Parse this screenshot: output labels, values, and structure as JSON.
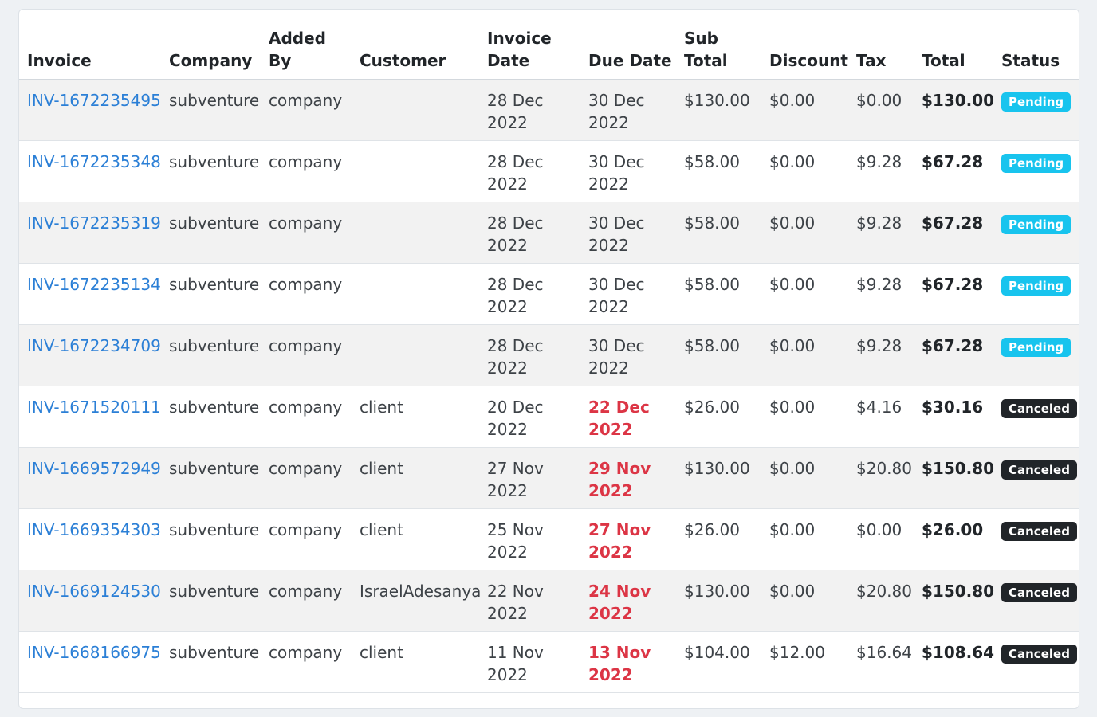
{
  "colors": {
    "link": "#2b7fd6",
    "overdue": "#dc3545",
    "pending_badge": "#18c4ee",
    "canceled_badge": "#212529"
  },
  "table": {
    "headers": {
      "invoice": "Invoice",
      "company": "Company",
      "added_by": "Added By",
      "customer": "Customer",
      "invoice_date": "Invoice Date",
      "due_date": "Due Date",
      "sub_total": "Sub Total",
      "discount": "Discount",
      "tax": "Tax",
      "total": "Total",
      "status": "Status"
    },
    "rows": [
      {
        "invoice": "INV-1672235495",
        "company": "subventure",
        "added_by": "company",
        "customer": "",
        "invoice_date": "28 Dec 2022",
        "due_date": "30 Dec 2022",
        "overdue": false,
        "sub_total": "$130.00",
        "discount": "$0.00",
        "tax": "$0.00",
        "total": "$130.00",
        "status": "Pending"
      },
      {
        "invoice": "INV-1672235348",
        "company": "subventure",
        "added_by": "company",
        "customer": "",
        "invoice_date": "28 Dec 2022",
        "due_date": "30 Dec 2022",
        "overdue": false,
        "sub_total": "$58.00",
        "discount": "$0.00",
        "tax": "$9.28",
        "total": "$67.28",
        "status": "Pending"
      },
      {
        "invoice": "INV-1672235319",
        "company": "subventure",
        "added_by": "company",
        "customer": "",
        "invoice_date": "28 Dec 2022",
        "due_date": "30 Dec 2022",
        "overdue": false,
        "sub_total": "$58.00",
        "discount": "$0.00",
        "tax": "$9.28",
        "total": "$67.28",
        "status": "Pending"
      },
      {
        "invoice": "INV-1672235134",
        "company": "subventure",
        "added_by": "company",
        "customer": "",
        "invoice_date": "28 Dec 2022",
        "due_date": "30 Dec 2022",
        "overdue": false,
        "sub_total": "$58.00",
        "discount": "$0.00",
        "tax": "$9.28",
        "total": "$67.28",
        "status": "Pending"
      },
      {
        "invoice": "INV-1672234709",
        "company": "subventure",
        "added_by": "company",
        "customer": "",
        "invoice_date": "28 Dec 2022",
        "due_date": "30 Dec 2022",
        "overdue": false,
        "sub_total": "$58.00",
        "discount": "$0.00",
        "tax": "$9.28",
        "total": "$67.28",
        "status": "Pending"
      },
      {
        "invoice": "INV-1671520111",
        "company": "subventure",
        "added_by": "company",
        "customer": "client",
        "invoice_date": "20 Dec 2022",
        "due_date": "22 Dec 2022",
        "overdue": true,
        "sub_total": "$26.00",
        "discount": "$0.00",
        "tax": "$4.16",
        "total": "$30.16",
        "status": "Canceled"
      },
      {
        "invoice": "INV-1669572949",
        "company": "subventure",
        "added_by": "company",
        "customer": "client",
        "invoice_date": "27 Nov 2022",
        "due_date": "29 Nov 2022",
        "overdue": true,
        "sub_total": "$130.00",
        "discount": "$0.00",
        "tax": "$20.80",
        "total": "$150.80",
        "status": "Canceled"
      },
      {
        "invoice": "INV-1669354303",
        "company": "subventure",
        "added_by": "company",
        "customer": "client",
        "invoice_date": "25 Nov 2022",
        "due_date": "27 Nov 2022",
        "overdue": true,
        "sub_total": "$26.00",
        "discount": "$0.00",
        "tax": "$0.00",
        "total": "$26.00",
        "status": "Canceled"
      },
      {
        "invoice": "INV-1669124530",
        "company": "subventure",
        "added_by": "company",
        "customer": "IsraelAdesanya",
        "invoice_date": "22 Nov 2022",
        "due_date": "24 Nov 2022",
        "overdue": true,
        "sub_total": "$130.00",
        "discount": "$0.00",
        "tax": "$20.80",
        "total": "$150.80",
        "status": "Canceled"
      },
      {
        "invoice": "INV-1668166975",
        "company": "subventure",
        "added_by": "company",
        "customer": "client",
        "invoice_date": "11 Nov 2022",
        "due_date": "13 Nov 2022",
        "overdue": true,
        "sub_total": "$104.00",
        "discount": "$12.00",
        "tax": "$16.64",
        "total": "$108.64",
        "status": "Canceled"
      }
    ]
  }
}
